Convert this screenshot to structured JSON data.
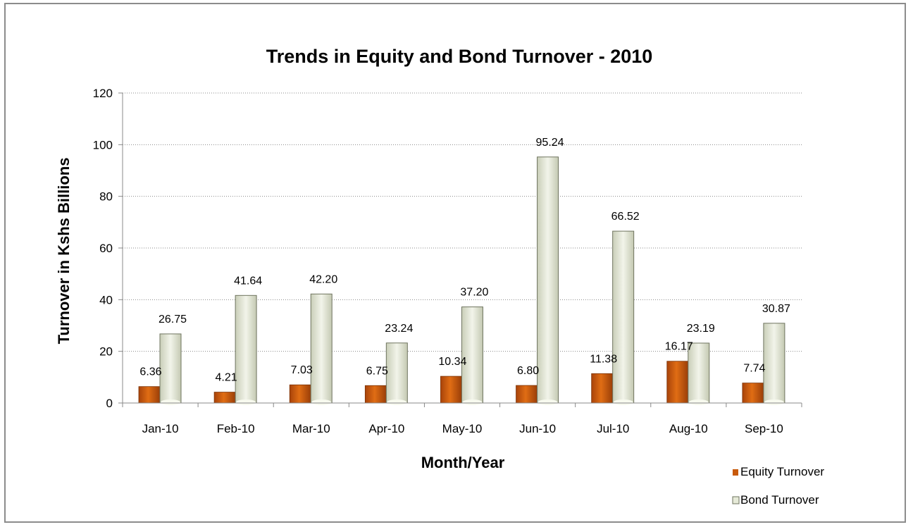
{
  "chart_data": {
    "type": "bar",
    "title": "Trends in Equity and Bond Turnover - 2010",
    "xlabel": "Month/Year",
    "ylabel": "Turnover in Kshs Billions",
    "ylim": [
      0,
      120
    ],
    "yticks": [
      0,
      20,
      40,
      60,
      80,
      100,
      120
    ],
    "categories": [
      "Jan-10",
      "Feb-10",
      "Mar-10",
      "Apr-10",
      "May-10",
      "Jun-10",
      "Jul-10",
      "Aug-10",
      "Sep-10"
    ],
    "series": [
      {
        "name": "Equity Turnover",
        "color": "#c85a0c",
        "values": [
          6.36,
          4.21,
          7.03,
          6.75,
          10.34,
          6.8,
          11.38,
          16.17,
          7.74
        ],
        "labels": [
          "6.36",
          "4.21",
          "7.03",
          "6.75",
          "10.34",
          "6.80",
          "11.38",
          "16.17",
          "7.74"
        ]
      },
      {
        "name": "Bond Turnover",
        "color": "#e6ead8",
        "values": [
          26.75,
          41.64,
          42.2,
          23.24,
          37.2,
          95.24,
          66.52,
          23.19,
          30.87
        ],
        "labels": [
          "26.75",
          "41.64",
          "42.20",
          "23.24",
          "37.20",
          "95.24",
          "66.52",
          "23.19",
          "30.87"
        ]
      }
    ],
    "grid": "horizontal-dotted",
    "legend_position": "bottom-right"
  }
}
